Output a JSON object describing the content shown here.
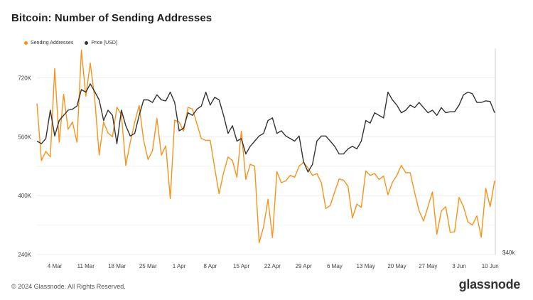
{
  "title": "Bitcoin: Number of Sending Addresses",
  "footer": "© 2024 Glassnode. All Rights Reserved.",
  "brand": "glassnode",
  "colors": {
    "sending": "#f7931a",
    "price": "#333333",
    "grid": "#eeeeee"
  },
  "chart_data": {
    "type": "line",
    "title": "Bitcoin: Number of Sending Addresses",
    "x_tick_labels": [
      "4 Mar",
      "11 Mar",
      "18 Mar",
      "25 Mar",
      "1 Apr",
      "8 Apr",
      "15 Apr",
      "22 Apr",
      "29 Apr",
      "6 May",
      "13 May",
      "20 May",
      "27 May",
      "3 Jun",
      "10 Jun"
    ],
    "y_left": {
      "ticks": [
        240000,
        400000,
        560000,
        720000
      ],
      "tick_labels": [
        "240K",
        "400K",
        "560K",
        "720K"
      ],
      "range": [
        240000,
        800000
      ]
    },
    "y_right": {
      "tick_labels": [
        "$40k"
      ]
    },
    "legend": [
      "Sending Addresses",
      "Price [USD]"
    ],
    "grid": true,
    "days": [
      "2024-02-29",
      "2024-03-01",
      "2024-03-02",
      "2024-03-03",
      "2024-03-04",
      "2024-03-05",
      "2024-03-06",
      "2024-03-07",
      "2024-03-08",
      "2024-03-09",
      "2024-03-10",
      "2024-03-11",
      "2024-03-12",
      "2024-03-13",
      "2024-03-14",
      "2024-03-15",
      "2024-03-16",
      "2024-03-17",
      "2024-03-18",
      "2024-03-19",
      "2024-03-20",
      "2024-03-21",
      "2024-03-22",
      "2024-03-23",
      "2024-03-24",
      "2024-03-25",
      "2024-03-26",
      "2024-03-27",
      "2024-03-28",
      "2024-03-29",
      "2024-03-30",
      "2024-03-31",
      "2024-04-01",
      "2024-04-02",
      "2024-04-03",
      "2024-04-04",
      "2024-04-05",
      "2024-04-06",
      "2024-04-07",
      "2024-04-08",
      "2024-04-09",
      "2024-04-10",
      "2024-04-11",
      "2024-04-12",
      "2024-04-13",
      "2024-04-14",
      "2024-04-15",
      "2024-04-16",
      "2024-04-17",
      "2024-04-18",
      "2024-04-19",
      "2024-04-20",
      "2024-04-21",
      "2024-04-22",
      "2024-04-23",
      "2024-04-24",
      "2024-04-25",
      "2024-04-26",
      "2024-04-27",
      "2024-04-28",
      "2024-04-29",
      "2024-04-30",
      "2024-05-01",
      "2024-05-02",
      "2024-05-03",
      "2024-05-04",
      "2024-05-05",
      "2024-05-06",
      "2024-05-07",
      "2024-05-08",
      "2024-05-09",
      "2024-05-10",
      "2024-05-11",
      "2024-05-12",
      "2024-05-13",
      "2024-05-14",
      "2024-05-15",
      "2024-05-16",
      "2024-05-17",
      "2024-05-18",
      "2024-05-19",
      "2024-05-20",
      "2024-05-21",
      "2024-05-22",
      "2024-05-23",
      "2024-05-24",
      "2024-05-25",
      "2024-05-26",
      "2024-05-27",
      "2024-05-28",
      "2024-05-29",
      "2024-05-30",
      "2024-05-31",
      "2024-06-01",
      "2024-06-02",
      "2024-06-03",
      "2024-06-04",
      "2024-06-05",
      "2024-06-06",
      "2024-06-07",
      "2024-06-08",
      "2024-06-09",
      "2024-06-10",
      "2024-06-11"
    ],
    "series": [
      {
        "name": "Sending Addresses",
        "axis": "left",
        "values": [
          650000,
          495000,
          520000,
          505000,
          745000,
          545000,
          675000,
          580000,
          600000,
          545000,
          795000,
          670000,
          760000,
          665000,
          510000,
          600000,
          570000,
          560000,
          640000,
          620000,
          482000,
          545000,
          600000,
          645000,
          550000,
          498000,
          522000,
          610000,
          510000,
          535000,
          392000,
          605000,
          600000,
          575000,
          640000,
          635000,
          595000,
          555000,
          550000,
          550000,
          475000,
          405000,
          462000,
          505000,
          495000,
          450000,
          575000,
          444000,
          485000,
          480000,
          272000,
          315000,
          390000,
          286000,
          465000,
          435000,
          440000,
          455000,
          450000,
          480000,
          490000,
          475000,
          455000,
          460000,
          435000,
          365000,
          373000,
          410000,
          445000,
          442000,
          425000,
          339000,
          377000,
          368000,
          467000,
          455000,
          460000,
          444000,
          453000,
          402000,
          436000,
          455000,
          482000,
          462000,
          462000,
          408000,
          359000,
          331000,
          370000,
          410000,
          295000,
          358000,
          370000,
          300000,
          302000,
          395000,
          370000,
          328000,
          320000,
          345000,
          287000,
          420000,
          370000,
          440000
        ]
      },
      {
        "name": "Price [USD]",
        "axis": "right",
        "values": [
          62000,
          61500,
          62500,
          68000,
          63000,
          66000,
          67000,
          68000,
          68200,
          68800,
          72000,
          71500,
          73100,
          71600,
          70000,
          66000,
          68000,
          67000,
          61500,
          68000,
          65000,
          63000,
          63500,
          67000,
          70000,
          70000,
          69500,
          71000,
          70000,
          69800,
          71500,
          69500,
          64000,
          64500,
          67500,
          67000,
          68200,
          68800,
          71500,
          69000,
          70500,
          70000,
          67000,
          63500,
          65000,
          62000,
          62500,
          59500,
          61000,
          62000,
          63000,
          63500,
          66000,
          66500,
          63500,
          64000,
          63000,
          62500,
          62000,
          63000,
          58000,
          56000,
          57500,
          62000,
          63000,
          63000,
          62000,
          61000,
          59500,
          59500,
          60500,
          61000,
          60500,
          62000,
          66000,
          65500,
          67500,
          67000,
          66500,
          71500,
          70000,
          69000,
          67500,
          68000,
          69000,
          68500,
          69500,
          68500,
          67500,
          68000,
          67000,
          68500,
          67500,
          67700,
          67700,
          69000,
          71000,
          71500,
          71200,
          69500,
          69500,
          69800,
          69700,
          67500
        ]
      }
    ]
  }
}
